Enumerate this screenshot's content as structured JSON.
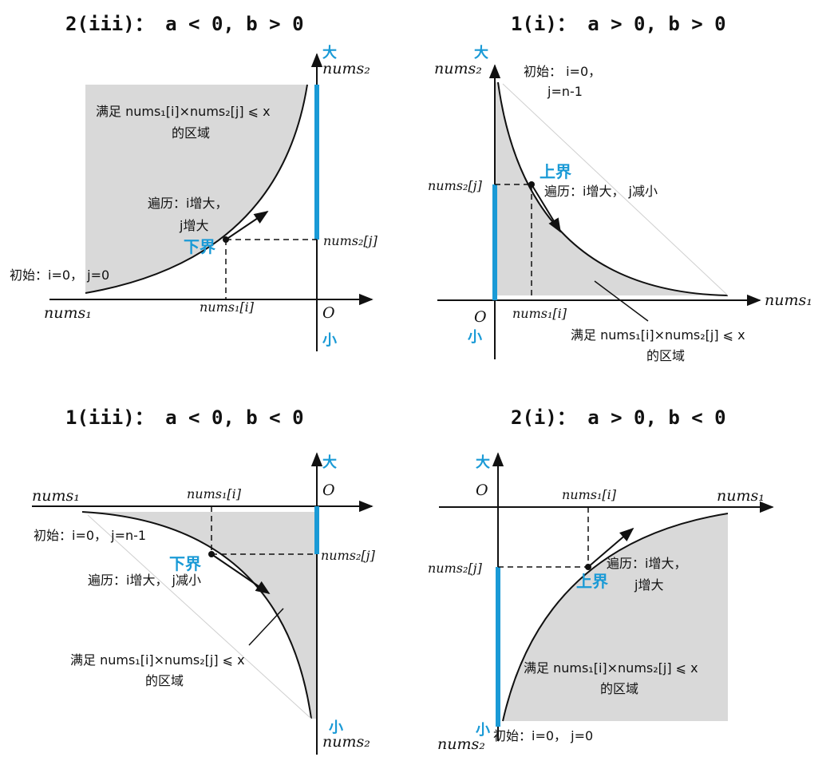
{
  "panels": [
    {
      "title": "2(iii)：  a < 0, b > 0",
      "axis_x": "nums₁",
      "axis_y": "",
      "top_tag": "大",
      "top_axis": "nums₂",
      "origin": "O",
      "bottom_tag": "小",
      "x_mark": "nums₁[i]",
      "y_mark": "nums₂[j]",
      "bound": "下界",
      "traverse": [
        "遍历：i增大，",
        "j增大"
      ],
      "init": "初始：i=0， j=0",
      "region": [
        "满足 nums₁[i]×nums₂[j] ⩽ x",
        "的区域"
      ]
    },
    {
      "title": "1(i)：  a > 0, b > 0",
      "axis_x": "nums₁",
      "axis_y": "nums₂",
      "top_tag": "大",
      "origin": "O",
      "bottom_tag": "小",
      "x_mark": "nums₁[i]",
      "y_mark": "nums₂[j]",
      "bound": "上界",
      "traverse": [
        "遍历：i增大， j减小"
      ],
      "init": [
        "初始： i=0，",
        "j=n-1"
      ],
      "region": [
        "满足 nums₁[i]×nums₂[j] ⩽ x",
        "的区域"
      ]
    },
    {
      "title": "1(iii)：  a < 0, b < 0",
      "axis_x": "nums₁",
      "top_tag": "大",
      "origin": "O",
      "bottom_tag": "小",
      "bottom_axis": "nums₂",
      "x_mark": "nums₁[i]",
      "y_mark": "nums₂[j]",
      "bound": "下界",
      "traverse": [
        "遍历：i增大， j减小"
      ],
      "init": "初始：i=0， j=n-1",
      "region": [
        "满足 nums₁[i]×nums₂[j] ⩽ x",
        "的区域"
      ]
    },
    {
      "title": "2(i)：  a > 0, b < 0",
      "axis_x": "nums₁",
      "top_tag": "大",
      "origin": "O",
      "bottom_tag": "小",
      "bottom_axis": "nums₂",
      "x_mark": "nums₁[i]",
      "y_mark": "nums₂[j]",
      "bound": "上界",
      "traverse": [
        "遍历：i增大，",
        "j增大"
      ],
      "init": "初始：i=0， j=0",
      "region": [
        "满足 nums₁[i]×nums₂[j] ⩽ x",
        "的区域"
      ]
    }
  ],
  "colors": {
    "region": "#d9d9d9",
    "highlight": "#1a9ad6",
    "ink": "#111111"
  }
}
